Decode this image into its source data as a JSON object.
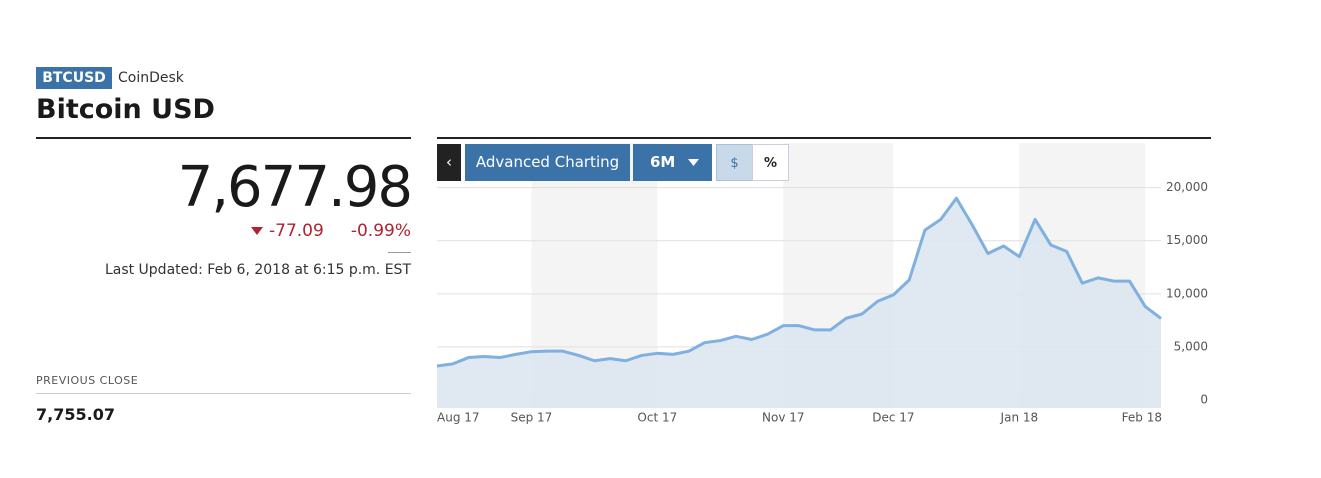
{
  "header": {
    "ticker": "BTCUSD",
    "source": "CoinDesk",
    "title": "Bitcoin USD"
  },
  "quote": {
    "price": "7,677.98",
    "change": "-77.09",
    "change_percent": "-0.99%",
    "last_updated": "Last Updated: Feb 6, 2018 at 6:15 p.m. EST",
    "previous_close_label": "PREVIOUS CLOSE",
    "previous_close": "7,755.07"
  },
  "toolbar": {
    "advanced": "Advanced Charting",
    "range": "6M",
    "dollar": "$",
    "percent": "%"
  },
  "chart_data": {
    "type": "area",
    "categories": [
      "Aug 17",
      null,
      null,
      null,
      null,
      null,
      "Sep 17",
      null,
      null,
      null,
      null,
      null,
      null,
      null,
      "Oct 17",
      null,
      null,
      null,
      null,
      null,
      null,
      null,
      "Nov 17",
      null,
      null,
      null,
      null,
      null,
      null,
      "Dec 17",
      null,
      null,
      null,
      null,
      null,
      null,
      null,
      "Jan 18",
      null,
      null,
      null,
      null,
      null,
      null,
      null,
      "Feb 18",
      null
    ],
    "series": [
      {
        "name": "BTCUSD",
        "color": "#7fb0e0",
        "values": [
          3200,
          3400,
          4000,
          4100,
          4000,
          4300,
          4550,
          4600,
          4600,
          4200,
          3700,
          3900,
          3700,
          4200,
          4400,
          4300,
          4600,
          5400,
          5600,
          6000,
          5700,
          6200,
          7000,
          7000,
          6600,
          6600,
          7700,
          8100,
          9300,
          9900,
          11300,
          16000,
          17000,
          19000,
          16500,
          13800,
          14500,
          13500,
          17000,
          14600,
          14000,
          11000,
          11500,
          11200,
          11200,
          8800,
          7678
        ]
      }
    ],
    "ylim": [
      -750,
      24200
    ],
    "yticks": [
      0,
      {
        "value": 5000,
        "label": "5,000"
      },
      {
        "value": 10000,
        "label": "10,000"
      },
      {
        "value": 15000,
        "label": "15,000"
      },
      {
        "value": 20000,
        "label": "20,000"
      }
    ],
    "grid": true
  }
}
